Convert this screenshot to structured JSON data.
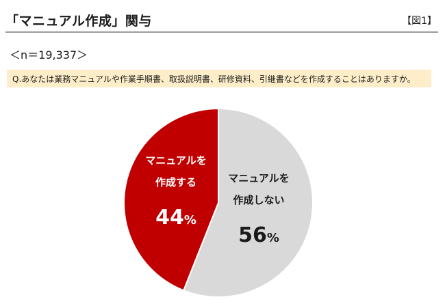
{
  "header": {
    "title": "「マニュアル作成」関与",
    "figure_label": "【図1】"
  },
  "sample": "＜n＝19,337＞",
  "question": "Q.あなたは業務マニュアルや作業手順書、取扱説明書、研修資料、引継書などを作成することはありますか。",
  "colors": {
    "accent": "#c00000",
    "slice_create": "#c00000",
    "slice_not_create": "#d9d9d9",
    "question_bg": "#fdeec9",
    "rule": "#9a9a9a"
  },
  "chart_data": {
    "type": "pie",
    "title": "",
    "slices": [
      {
        "label_lines": [
          "マニュアルを",
          "作成する"
        ],
        "value": 44,
        "value_label": "44",
        "unit": "%",
        "color": "#c00000",
        "text_color": "#ffffff"
      },
      {
        "label_lines": [
          "マニュアルを",
          "作成しない"
        ],
        "value": 56,
        "value_label": "56",
        "unit": "%",
        "color": "#d9d9d9",
        "text_color": "#1a1a1a"
      }
    ],
    "start_angle_deg": 0,
    "direction": "counterclockwise"
  }
}
